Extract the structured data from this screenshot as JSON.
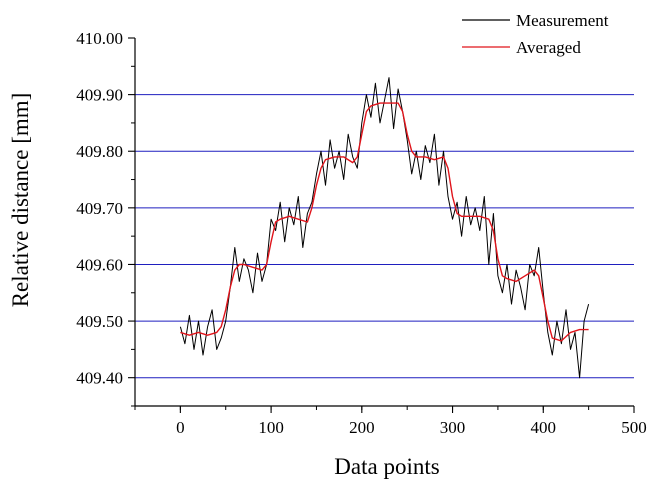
{
  "chart_data": {
    "type": "line",
    "title": "",
    "xlabel": "Data points",
    "ylabel": "Relative distance [mm]",
    "xlim": [
      -50,
      500
    ],
    "ylim": [
      409.35,
      410.0
    ],
    "x_ticks": [
      "0",
      "100",
      "200",
      "300",
      "400",
      "500"
    ],
    "y_ticks": [
      "409.40",
      "409.50",
      "409.60",
      "409.70",
      "409.80",
      "409.90",
      "410.00"
    ],
    "grid": "horizontal",
    "grid_values": [
      409.4,
      409.5,
      409.6,
      409.7,
      409.8,
      409.9
    ],
    "legend_position": "top-right",
    "colors": {
      "grid": "#1f1fbf",
      "measurement": "#000000",
      "averaged": "#e0141b"
    },
    "series": [
      {
        "name": "Measurement",
        "x": [
          0,
          5,
          10,
          15,
          20,
          25,
          30,
          35,
          40,
          45,
          50,
          55,
          60,
          65,
          70,
          75,
          80,
          85,
          90,
          95,
          100,
          105,
          110,
          115,
          120,
          125,
          130,
          135,
          140,
          145,
          150,
          155,
          160,
          165,
          170,
          175,
          180,
          185,
          190,
          195,
          200,
          205,
          210,
          215,
          220,
          225,
          230,
          235,
          240,
          245,
          250,
          255,
          260,
          265,
          270,
          275,
          280,
          285,
          290,
          295,
          300,
          305,
          310,
          315,
          320,
          325,
          330,
          335,
          340,
          345,
          350,
          355,
          360,
          365,
          370,
          375,
          380,
          385,
          390,
          395,
          400,
          405,
          410,
          415,
          420,
          425,
          430,
          435,
          440,
          445,
          450
        ],
        "y": [
          409.49,
          409.46,
          409.51,
          409.45,
          409.5,
          409.44,
          409.49,
          409.52,
          409.45,
          409.47,
          409.5,
          409.56,
          409.63,
          409.57,
          409.61,
          409.59,
          409.55,
          409.62,
          409.57,
          409.6,
          409.68,
          409.66,
          409.71,
          409.64,
          409.7,
          409.67,
          409.72,
          409.63,
          409.69,
          409.71,
          409.76,
          409.8,
          409.74,
          409.82,
          409.77,
          409.8,
          409.75,
          409.83,
          409.79,
          409.77,
          409.85,
          409.9,
          409.86,
          409.92,
          409.85,
          409.89,
          409.93,
          409.84,
          409.91,
          409.87,
          409.82,
          409.76,
          409.8,
          409.75,
          409.81,
          409.78,
          409.83,
          409.74,
          409.8,
          409.72,
          409.68,
          409.71,
          409.65,
          409.72,
          409.67,
          409.7,
          409.66,
          409.72,
          409.6,
          409.69,
          409.58,
          409.55,
          409.6,
          409.53,
          409.59,
          409.56,
          409.52,
          409.6,
          409.58,
          409.63,
          409.55,
          409.48,
          409.44,
          409.5,
          409.46,
          409.52,
          409.45,
          409.48,
          409.4,
          409.5,
          409.53
        ]
      },
      {
        "name": "Averaged",
        "x": [
          0,
          10,
          20,
          30,
          40,
          45,
          50,
          55,
          60,
          65,
          70,
          80,
          90,
          95,
          100,
          105,
          110,
          120,
          130,
          140,
          145,
          150,
          155,
          160,
          170,
          180,
          190,
          195,
          200,
          205,
          210,
          220,
          230,
          240,
          245,
          250,
          255,
          260,
          270,
          280,
          290,
          295,
          300,
          305,
          310,
          320,
          330,
          340,
          345,
          350,
          355,
          360,
          370,
          380,
          390,
          395,
          400,
          405,
          410,
          420,
          430,
          440,
          450
        ],
        "y": [
          409.48,
          409.475,
          409.48,
          409.475,
          409.48,
          409.49,
          409.52,
          409.56,
          409.59,
          409.6,
          409.6,
          409.595,
          409.59,
          409.6,
          409.64,
          409.675,
          409.68,
          409.685,
          409.68,
          409.675,
          409.7,
          409.74,
          409.77,
          409.785,
          409.79,
          409.79,
          409.78,
          409.79,
          409.83,
          409.87,
          409.88,
          409.885,
          409.885,
          409.885,
          409.87,
          409.83,
          409.8,
          409.79,
          409.79,
          409.785,
          409.79,
          409.77,
          409.72,
          409.69,
          409.685,
          409.685,
          409.685,
          409.68,
          409.66,
          409.61,
          409.58,
          409.575,
          409.57,
          409.58,
          409.59,
          409.58,
          409.54,
          409.5,
          409.47,
          409.465,
          409.48,
          409.485,
          409.485
        ]
      }
    ]
  }
}
